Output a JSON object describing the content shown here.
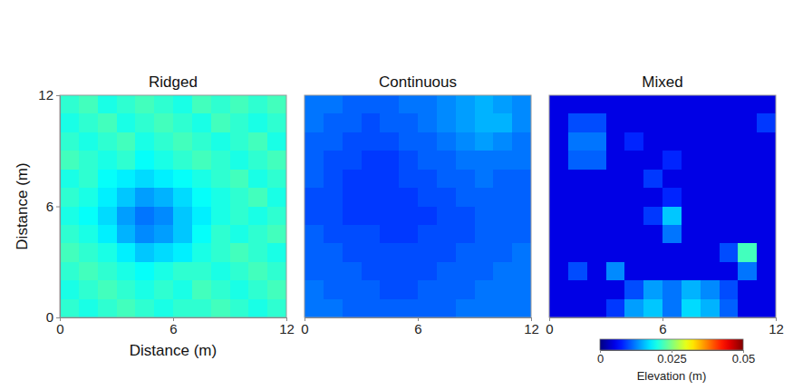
{
  "chart_data": [
    {
      "type": "heatmap",
      "title": "Ridged",
      "xlabel": "Distance (m)",
      "ylabel": "Distance (m)",
      "xlim": [
        0,
        12
      ],
      "ylim": [
        0,
        12
      ],
      "xticks": [
        0,
        6,
        12
      ],
      "yticks": [
        0,
        6,
        12
      ],
      "cells": [
        [
          0.021,
          0.022,
          0.02,
          0.021,
          0.022,
          0.021,
          0.02,
          0.022,
          0.021,
          0.022,
          0.021,
          0.022
        ],
        [
          0.02,
          0.021,
          0.022,
          0.02,
          0.021,
          0.022,
          0.021,
          0.02,
          0.022,
          0.021,
          0.02,
          0.021
        ],
        [
          0.021,
          0.02,
          0.021,
          0.022,
          0.02,
          0.021,
          0.022,
          0.021,
          0.02,
          0.021,
          0.022,
          0.02
        ],
        [
          0.022,
          0.021,
          0.02,
          0.021,
          0.019,
          0.02,
          0.021,
          0.022,
          0.021,
          0.02,
          0.021,
          0.022
        ],
        [
          0.02,
          0.021,
          0.019,
          0.018,
          0.017,
          0.018,
          0.019,
          0.02,
          0.021,
          0.022,
          0.02,
          0.021
        ],
        [
          0.021,
          0.02,
          0.018,
          0.016,
          0.014,
          0.015,
          0.017,
          0.019,
          0.02,
          0.021,
          0.022,
          0.02
        ],
        [
          0.02,
          0.019,
          0.017,
          0.014,
          0.012,
          0.013,
          0.016,
          0.018,
          0.02,
          0.021,
          0.02,
          0.021
        ],
        [
          0.021,
          0.02,
          0.018,
          0.015,
          0.013,
          0.014,
          0.016,
          0.019,
          0.021,
          0.02,
          0.021,
          0.022
        ],
        [
          0.022,
          0.021,
          0.02,
          0.018,
          0.016,
          0.017,
          0.018,
          0.02,
          0.021,
          0.022,
          0.021,
          0.02
        ],
        [
          0.021,
          0.022,
          0.021,
          0.02,
          0.019,
          0.02,
          0.021,
          0.021,
          0.02,
          0.021,
          0.022,
          0.021
        ],
        [
          0.02,
          0.021,
          0.022,
          0.021,
          0.02,
          0.021,
          0.02,
          0.022,
          0.021,
          0.02,
          0.021,
          0.022
        ],
        [
          0.021,
          0.02,
          0.021,
          0.022,
          0.021,
          0.02,
          0.021,
          0.021,
          0.022,
          0.021,
          0.02,
          0.021
        ]
      ]
    },
    {
      "type": "heatmap",
      "title": "Continuous",
      "tick_labels": "x",
      "xlim": [
        0,
        12
      ],
      "ylim": [
        0,
        12
      ],
      "xticks": [
        0,
        6,
        12
      ],
      "cells": [
        [
          0.012,
          0.012,
          0.011,
          0.011,
          0.011,
          0.012,
          0.012,
          0.013,
          0.014,
          0.015,
          0.014,
          0.013
        ],
        [
          0.012,
          0.011,
          0.011,
          0.01,
          0.011,
          0.011,
          0.012,
          0.013,
          0.014,
          0.015,
          0.015,
          0.013
        ],
        [
          0.011,
          0.011,
          0.01,
          0.01,
          0.01,
          0.011,
          0.011,
          0.012,
          0.013,
          0.014,
          0.013,
          0.012
        ],
        [
          0.011,
          0.01,
          0.01,
          0.009,
          0.009,
          0.01,
          0.011,
          0.011,
          0.012,
          0.012,
          0.012,
          0.012
        ],
        [
          0.011,
          0.01,
          0.009,
          0.009,
          0.009,
          0.01,
          0.01,
          0.011,
          0.011,
          0.012,
          0.011,
          0.011
        ],
        [
          0.01,
          0.01,
          0.009,
          0.009,
          0.009,
          0.009,
          0.01,
          0.01,
          0.011,
          0.011,
          0.011,
          0.011
        ],
        [
          0.01,
          0.01,
          0.009,
          0.009,
          0.009,
          0.009,
          0.009,
          0.01,
          0.01,
          0.011,
          0.011,
          0.011
        ],
        [
          0.011,
          0.01,
          0.01,
          0.01,
          0.009,
          0.009,
          0.01,
          0.01,
          0.01,
          0.011,
          0.011,
          0.011
        ],
        [
          0.011,
          0.011,
          0.01,
          0.01,
          0.01,
          0.01,
          0.01,
          0.01,
          0.011,
          0.011,
          0.011,
          0.012
        ],
        [
          0.011,
          0.011,
          0.011,
          0.01,
          0.01,
          0.01,
          0.01,
          0.011,
          0.011,
          0.011,
          0.012,
          0.012
        ],
        [
          0.012,
          0.011,
          0.011,
          0.011,
          0.01,
          0.01,
          0.011,
          0.011,
          0.011,
          0.012,
          0.012,
          0.012
        ],
        [
          0.012,
          0.012,
          0.011,
          0.011,
          0.011,
          0.011,
          0.011,
          0.011,
          0.012,
          0.012,
          0.012,
          0.012
        ]
      ]
    },
    {
      "type": "heatmap",
      "title": "Mixed",
      "tick_labels": "x",
      "xlim": [
        0,
        12
      ],
      "ylim": [
        0,
        12
      ],
      "xticks": [
        0,
        6,
        12
      ],
      "cells": [
        [
          0.005,
          0.005,
          0.005,
          0.005,
          0.005,
          0.005,
          0.005,
          0.005,
          0.005,
          0.005,
          0.005,
          0.005
        ],
        [
          0.005,
          0.01,
          0.01,
          0.005,
          0.005,
          0.005,
          0.005,
          0.005,
          0.005,
          0.005,
          0.005,
          0.009
        ],
        [
          0.005,
          0.012,
          0.012,
          0.005,
          0.008,
          0.005,
          0.005,
          0.005,
          0.005,
          0.005,
          0.005,
          0.005
        ],
        [
          0.005,
          0.011,
          0.011,
          0.005,
          0.005,
          0.005,
          0.008,
          0.005,
          0.005,
          0.005,
          0.005,
          0.005
        ],
        [
          0.005,
          0.005,
          0.005,
          0.005,
          0.005,
          0.009,
          0.005,
          0.005,
          0.005,
          0.005,
          0.005,
          0.005
        ],
        [
          0.005,
          0.005,
          0.005,
          0.005,
          0.005,
          0.005,
          0.008,
          0.005,
          0.005,
          0.005,
          0.005,
          0.005
        ],
        [
          0.005,
          0.005,
          0.005,
          0.005,
          0.005,
          0.009,
          0.016,
          0.005,
          0.005,
          0.005,
          0.005,
          0.005
        ],
        [
          0.005,
          0.005,
          0.005,
          0.005,
          0.005,
          0.005,
          0.012,
          0.005,
          0.005,
          0.005,
          0.005,
          0.005
        ],
        [
          0.005,
          0.005,
          0.005,
          0.005,
          0.005,
          0.005,
          0.005,
          0.005,
          0.005,
          0.01,
          0.022,
          0.005
        ],
        [
          0.005,
          0.01,
          0.005,
          0.013,
          0.005,
          0.005,
          0.005,
          0.005,
          0.005,
          0.005,
          0.012,
          0.005
        ],
        [
          0.005,
          0.005,
          0.005,
          0.005,
          0.01,
          0.014,
          0.012,
          0.015,
          0.013,
          0.01,
          0.005,
          0.005
        ],
        [
          0.005,
          0.005,
          0.005,
          0.009,
          0.014,
          0.016,
          0.012,
          0.017,
          0.015,
          0.011,
          0.005,
          0.005
        ]
      ]
    }
  ],
  "colorbar": {
    "label": "Elevation (m)",
    "range": [
      0,
      0.05
    ],
    "ticks": [
      0,
      0.025,
      0.05
    ]
  }
}
